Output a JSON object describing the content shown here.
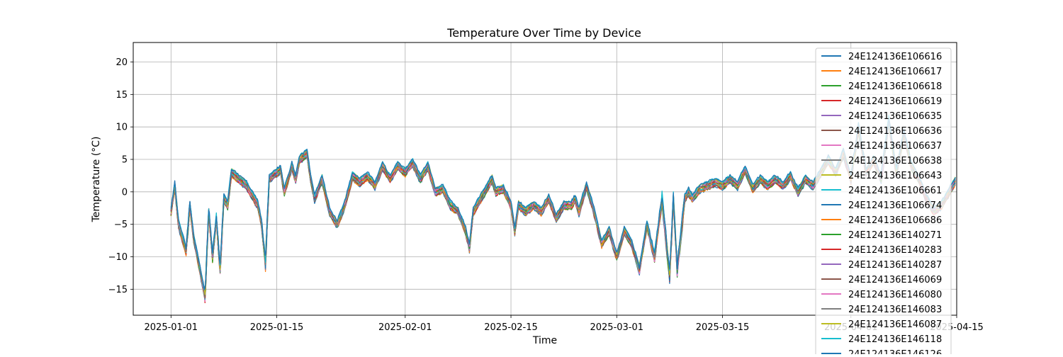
{
  "chart_data": {
    "type": "line",
    "title": "Temperature Over Time by Device",
    "xlabel": "Time",
    "ylabel": "Temperature (°C)",
    "grid": true,
    "legend_placement": "top-right (clipped at bottom)",
    "x_range": [
      "2024-12-27",
      "2025-04-15"
    ],
    "ylim": [
      -19,
      23
    ],
    "x_ticks": [
      "2025-01-01",
      "2025-01-15",
      "2025-02-01",
      "2025-02-15",
      "2025-03-01",
      "2025-03-15",
      "2025-04-01",
      "2025-04-15"
    ],
    "x_tick_labels": [
      "2025-01-01",
      "2025-01-15",
      "2025-02-01",
      "2025-02-15",
      "2025-03-01",
      "2025-03-15",
      "2025-04-01",
      "2025-04-15"
    ],
    "y_ticks": [
      -15,
      -10,
      -5,
      0,
      5,
      10,
      15,
      20
    ],
    "y_tick_labels": [
      "−15",
      "−10",
      "−5",
      "0",
      "5",
      "10",
      "15",
      "20"
    ],
    "profile": [
      [
        "2025-01-01",
        -3.0
      ],
      [
        "2025-01-01",
        1.0
      ],
      [
        "2025-01-02",
        -5.0
      ],
      [
        "2025-01-03",
        -9.0
      ],
      [
        "2025-01-03",
        -2.0
      ],
      [
        "2025-01-04",
        -7.0
      ],
      [
        "2025-01-05",
        -13.0
      ],
      [
        "2025-01-05",
        -16.0
      ],
      [
        "2025-01-06",
        -3.0
      ],
      [
        "2025-01-06",
        -10.0
      ],
      [
        "2025-01-07",
        -4.0
      ],
      [
        "2025-01-07",
        -12.0
      ],
      [
        "2025-01-08",
        -1.0
      ],
      [
        "2025-01-08",
        -2.0
      ],
      [
        "2025-01-09",
        3.0
      ],
      [
        "2025-01-10",
        2.0
      ],
      [
        "2025-01-11",
        1.0
      ],
      [
        "2025-01-12",
        -1.0
      ],
      [
        "2025-01-12",
        -2.0
      ],
      [
        "2025-01-13",
        -5.0
      ],
      [
        "2025-01-13",
        -11.0
      ],
      [
        "2025-01-14",
        2.0
      ],
      [
        "2025-01-15",
        3.0
      ],
      [
        "2025-01-15",
        3.5
      ],
      [
        "2025-01-16",
        0.0
      ],
      [
        "2025-01-17",
        4.0
      ],
      [
        "2025-01-17",
        2.0
      ],
      [
        "2025-01-18",
        5.0
      ],
      [
        "2025-01-19",
        6.0
      ],
      [
        "2025-01-19",
        2.0
      ],
      [
        "2025-01-20",
        -1.0
      ],
      [
        "2025-01-21",
        2.0
      ],
      [
        "2025-01-22",
        -3.0
      ],
      [
        "2025-01-23",
        -5.0
      ],
      [
        "2025-01-24",
        -2.0
      ],
      [
        "2025-01-25",
        2.5
      ],
      [
        "2025-01-26",
        1.5
      ],
      [
        "2025-01-27",
        2.5
      ],
      [
        "2025-01-28",
        1.0
      ],
      [
        "2025-01-29",
        4.0
      ],
      [
        "2025-01-30",
        2.0
      ],
      [
        "2025-01-31",
        4.0
      ],
      [
        "2025-02-01",
        3.0
      ],
      [
        "2025-02-02",
        4.5
      ],
      [
        "2025-02-03",
        2.0
      ],
      [
        "2025-02-04",
        4.0
      ],
      [
        "2025-02-05",
        0.0
      ],
      [
        "2025-02-06",
        0.5
      ],
      [
        "2025-02-07",
        -2.0
      ],
      [
        "2025-02-08",
        -3.0
      ],
      [
        "2025-02-09",
        -6.0
      ],
      [
        "2025-02-09",
        -8.5
      ],
      [
        "2025-02-10",
        -3.0
      ],
      [
        "2025-02-11",
        -1.0
      ],
      [
        "2025-02-12",
        1.0
      ],
      [
        "2025-02-12",
        2.0
      ],
      [
        "2025-02-13",
        0.0
      ],
      [
        "2025-02-14",
        0.5
      ],
      [
        "2025-02-15",
        -2.0
      ],
      [
        "2025-02-15",
        -6.0
      ],
      [
        "2025-02-16",
        -2.0
      ],
      [
        "2025-02-17",
        -3.0
      ],
      [
        "2025-02-18",
        -2.0
      ],
      [
        "2025-02-19",
        -3.0
      ],
      [
        "2025-02-20",
        -1.0
      ],
      [
        "2025-02-21",
        -4.0
      ],
      [
        "2025-02-22",
        -2.0
      ],
      [
        "2025-02-23",
        -2.0
      ],
      [
        "2025-02-23",
        -1.0
      ],
      [
        "2025-02-24",
        -3.0
      ],
      [
        "2025-02-25",
        1.0
      ],
      [
        "2025-02-26",
        -3.0
      ],
      [
        "2025-02-27",
        -8.0
      ],
      [
        "2025-02-28",
        -6.0
      ],
      [
        "2025-03-01",
        -10.0
      ],
      [
        "2025-03-02",
        -6.0
      ],
      [
        "2025-03-03",
        -8.0
      ],
      [
        "2025-03-04",
        -12.0
      ],
      [
        "2025-03-05",
        -5.0
      ],
      [
        "2025-03-06",
        -10.0
      ],
      [
        "2025-03-07",
        -1.0
      ],
      [
        "2025-03-08",
        -13.0
      ],
      [
        "2025-03-08",
        -1.0
      ],
      [
        "2025-03-09",
        -12.0
      ],
      [
        "2025-03-10",
        -1.0
      ],
      [
        "2025-03-10",
        0.0
      ],
      [
        "2025-03-11",
        -1.0
      ],
      [
        "2025-03-12",
        0.5
      ],
      [
        "2025-03-13",
        1.0
      ],
      [
        "2025-03-14",
        1.5
      ],
      [
        "2025-03-15",
        1.0
      ],
      [
        "2025-03-16",
        2.0
      ],
      [
        "2025-03-17",
        1.0
      ],
      [
        "2025-03-18",
        3.5
      ],
      [
        "2025-03-19",
        0.5
      ],
      [
        "2025-03-20",
        2.0
      ],
      [
        "2025-03-21",
        1.0
      ],
      [
        "2025-03-22",
        2.0
      ],
      [
        "2025-03-23",
        1.0
      ],
      [
        "2025-03-24",
        2.5
      ],
      [
        "2025-03-25",
        0.0
      ],
      [
        "2025-03-26",
        2.0
      ],
      [
        "2025-03-27",
        1.0
      ],
      [
        "2025-03-28",
        3.0
      ],
      [
        "2025-03-29",
        5.0
      ],
      [
        "2025-03-30",
        3.0
      ],
      [
        "2025-03-31",
        6.0
      ],
      [
        "2025-04-01",
        2.0
      ],
      [
        "2025-04-02",
        10.0
      ],
      [
        "2025-04-03",
        3.0
      ],
      [
        "2025-04-04",
        5.0
      ],
      [
        "2025-04-05",
        2.0
      ],
      [
        "2025-04-06",
        11.0
      ],
      [
        "2025-04-07",
        3.0
      ],
      [
        "2025-04-08",
        9.0
      ],
      [
        "2025-04-09",
        4.0
      ],
      [
        "2025-04-10",
        2.0
      ],
      [
        "2025-04-11",
        -1.0
      ],
      [
        "2025-04-12",
        -3.0
      ],
      [
        "2025-04-13",
        -2.0
      ],
      [
        "2025-04-14",
        0.0
      ],
      [
        "2025-04-15",
        2.0
      ]
    ],
    "series": [
      {
        "name": "24E124136E106616",
        "color": "#1f77b4"
      },
      {
        "name": "24E124136E106617",
        "color": "#ff7f0e"
      },
      {
        "name": "24E124136E106618",
        "color": "#2ca02c"
      },
      {
        "name": "24E124136E106619",
        "color": "#d62728"
      },
      {
        "name": "24E124136E106635",
        "color": "#9467bd"
      },
      {
        "name": "24E124136E106636",
        "color": "#8c564b"
      },
      {
        "name": "24E124136E106637",
        "color": "#e377c2"
      },
      {
        "name": "24E124136E106638",
        "color": "#7f7f7f"
      },
      {
        "name": "24E124136E106643",
        "color": "#bcbd22"
      },
      {
        "name": "24E124136E106661",
        "color": "#17becf"
      },
      {
        "name": "24E124136E106674",
        "color": "#1f77b4"
      },
      {
        "name": "24E124136E106686",
        "color": "#ff7f0e"
      },
      {
        "name": "24E124136E140271",
        "color": "#2ca02c"
      },
      {
        "name": "24E124136E140283",
        "color": "#d62728"
      },
      {
        "name": "24E124136E140287",
        "color": "#9467bd"
      },
      {
        "name": "24E124136E146069",
        "color": "#8c564b"
      },
      {
        "name": "24E124136E146080",
        "color": "#e377c2"
      },
      {
        "name": "24E124136E146083",
        "color": "#7f7f7f"
      },
      {
        "name": "24E124136E146087",
        "color": "#bcbd22"
      },
      {
        "name": "24E124136E146118",
        "color": "#17becf"
      },
      {
        "name": "24E124136E146126",
        "color": "#1f77b4"
      }
    ]
  }
}
